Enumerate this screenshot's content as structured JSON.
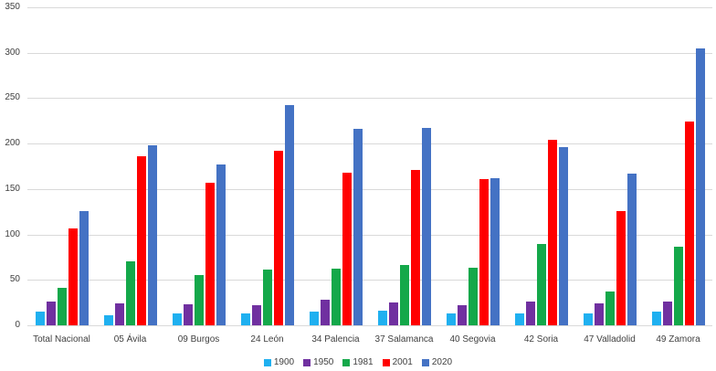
{
  "chart_data": {
    "type": "bar",
    "title": "",
    "xlabel": "",
    "ylabel": "",
    "ylim": [
      0,
      350
    ],
    "yticks": [
      0,
      50,
      100,
      150,
      200,
      250,
      300,
      350
    ],
    "grid": true,
    "legend_position": "bottom",
    "categories": [
      "Total Nacional",
      "05 Ávila",
      "09 Burgos",
      "24 León",
      "34 Palencia",
      "37 Salamanca",
      "40 Segovia",
      "42 Soria",
      "47 Valladolid",
      "49 Zamora"
    ],
    "series": [
      {
        "name": "1900",
        "color": "#1fb0f0",
        "values": [
          15,
          11,
          13,
          13,
          15,
          16,
          13,
          13,
          13,
          15
        ]
      },
      {
        "name": "1950",
        "color": "#7030a0",
        "values": [
          26,
          24,
          23,
          22,
          28,
          25,
          22,
          26,
          24,
          26
        ]
      },
      {
        "name": "1981",
        "color": "#14a84a",
        "values": [
          41,
          70,
          55,
          61,
          62,
          66,
          63,
          90,
          37,
          87
        ]
      },
      {
        "name": "2001",
        "color": "#ff0000",
        "values": [
          107,
          186,
          157,
          192,
          168,
          171,
          161,
          204,
          126,
          224
        ]
      },
      {
        "name": "2020",
        "color": "#4472c4",
        "values": [
          126,
          198,
          177,
          242,
          216,
          217,
          162,
          196,
          167,
          305
        ]
      }
    ]
  }
}
